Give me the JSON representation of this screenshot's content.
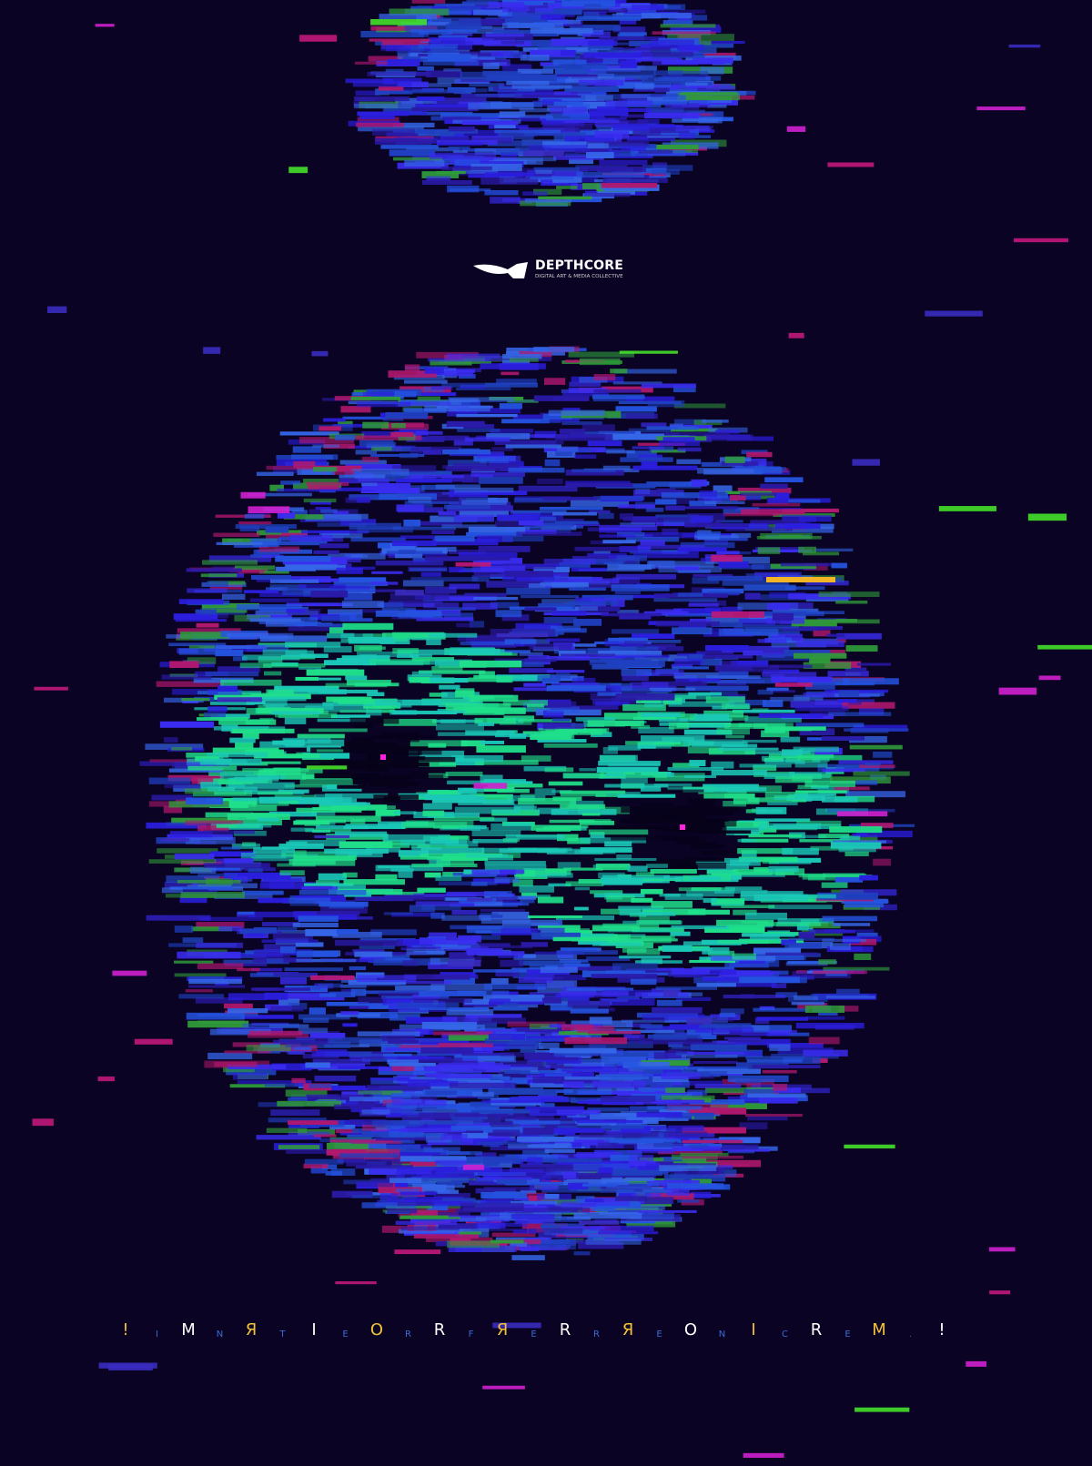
{
  "logo": {
    "name": "DEPTHCORE",
    "tagline": "DIGITAL ART & MEDIA COLLECTIVE"
  },
  "letters": [
    "!",
    "I",
    "M",
    "N",
    "Я",
    "T",
    "I",
    "E",
    "O",
    "R",
    "R",
    "F",
    "Я",
    "E",
    "R",
    "R",
    "Я",
    "E",
    "O",
    "N",
    "I",
    "C",
    "R",
    "E",
    "M",
    ".",
    "!"
  ]
}
